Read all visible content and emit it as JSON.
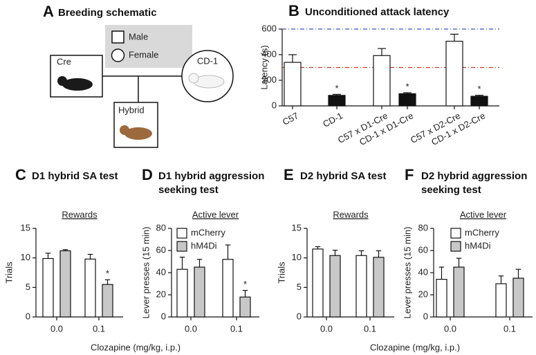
{
  "schematic": {
    "panel": "A",
    "title": "Breeding schematic",
    "legend": [
      "Male",
      "Female"
    ],
    "parents": [
      "Cre",
      "CD-1"
    ],
    "offspring": "Hybrid"
  },
  "chart_data": [
    {
      "panel": "B",
      "type": "bar",
      "title": "Unconditioned attack latency",
      "ylabel": "Latency (s)",
      "categories": [
        "C57",
        "CD-1",
        "C57 x D1-Cre",
        "CD-1 x D1-Cre",
        "C57 x D2-Cre",
        "CD-1 x D2-Cre"
      ],
      "values": [
        340,
        82,
        393,
        95,
        505,
        75
      ],
      "errors": [
        60,
        8,
        55,
        8,
        55,
        8
      ],
      "colors": [
        "#ffffff",
        "#111111",
        "#ffffff",
        "#111111",
        "#ffffff",
        "#111111"
      ],
      "markers": [
        null,
        "*",
        null,
        "*",
        null,
        "*"
      ],
      "ylim": [
        0,
        600
      ],
      "yticks": [
        0,
        200,
        400,
        600
      ],
      "hlines": [
        {
          "value": 600,
          "color": "#3a4fc4"
        },
        {
          "value": 300,
          "color": "#d9342b"
        }
      ]
    },
    {
      "panel": "C",
      "type": "bar",
      "title": "D1 hybrid SA test",
      "subtitle": "Rewards",
      "ylabel": "Trials",
      "xlabel": "Clozapine (mg/kg, i.p.)",
      "categories": [
        "0.0",
        "0.1"
      ],
      "legend": false,
      "series": [
        {
          "color": "#ffffff",
          "values": [
            9.9,
            9.8
          ],
          "errors": [
            0.9,
            0.8
          ]
        },
        {
          "color": "#c8c8c8",
          "values": [
            11.2,
            5.5
          ],
          "errors": [
            0.2,
            0.8
          ],
          "markers": [
            null,
            "*"
          ]
        }
      ],
      "ylim": [
        0,
        15
      ],
      "yticks": [
        0,
        5,
        10,
        15
      ]
    },
    {
      "panel": "D",
      "type": "bar",
      "title": "D1 hybrid aggression seeking test",
      "subtitle": "Active lever",
      "ylabel": "Lever presses (15 min)",
      "categories": [
        "0.0",
        "0.1"
      ],
      "legend": true,
      "series": [
        {
          "name": "mCherry",
          "color": "#ffffff",
          "values": [
            43,
            52
          ],
          "errors": [
            11,
            13
          ]
        },
        {
          "name": "hM4Di",
          "color": "#c8c8c8",
          "values": [
            45,
            18
          ],
          "errors": [
            7,
            6
          ],
          "markers": [
            null,
            "*"
          ]
        }
      ],
      "ylim": [
        0,
        80
      ],
      "yticks": [
        0,
        20,
        40,
        60,
        80
      ]
    },
    {
      "panel": "E",
      "type": "bar",
      "title": "D2 hybrid SA test",
      "subtitle": "Rewards",
      "ylabel": "Trials",
      "xlabel": "Clozapine (mg/kg, i.p.)",
      "categories": [
        "0.0",
        "0.1"
      ],
      "legend": false,
      "series": [
        {
          "color": "#ffffff",
          "values": [
            11.5,
            10.4
          ],
          "errors": [
            0.4,
            0.8
          ]
        },
        {
          "color": "#c8c8c8",
          "values": [
            10.4,
            10.1
          ],
          "errors": [
            0.9,
            1.1
          ]
        }
      ],
      "ylim": [
        0,
        15
      ],
      "yticks": [
        0,
        5,
        10,
        15
      ]
    },
    {
      "panel": "F",
      "type": "bar",
      "title": "D2 hybrid aggression seeking test",
      "subtitle": "Active lever",
      "ylabel": "Lever presses (15 min)",
      "categories": [
        "0.0",
        "0.1"
      ],
      "legend": true,
      "series": [
        {
          "name": "mCherry",
          "color": "#ffffff",
          "values": [
            34,
            30
          ],
          "errors": [
            11,
            7
          ]
        },
        {
          "name": "hM4Di",
          "color": "#c8c8c8",
          "values": [
            45,
            35
          ],
          "errors": [
            8,
            8
          ]
        }
      ],
      "ylim": [
        0,
        80
      ],
      "yticks": [
        0,
        20,
        40,
        60,
        80
      ]
    }
  ]
}
